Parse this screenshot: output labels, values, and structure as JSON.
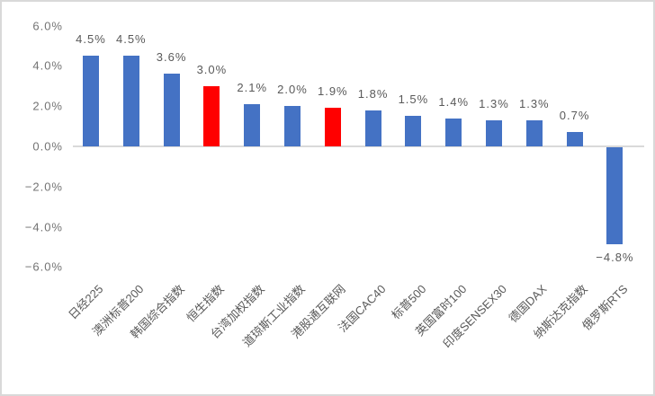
{
  "chart_data": {
    "type": "bar",
    "title": "",
    "xlabel": "",
    "ylabel": "",
    "categories": [
      "日经225",
      "澳洲标普200",
      "韩国综合指数",
      "恒生指数",
      "台湾加权指数",
      "道琼斯工业指数",
      "港股通互联网",
      "法国CAC40",
      "标普500",
      "英国富时100",
      "印度SENSEX30",
      "德国DAX",
      "纳斯达克指数",
      "俄罗斯RTS"
    ],
    "values": [
      4.5,
      4.5,
      3.6,
      3.0,
      2.1,
      2.0,
      1.9,
      1.8,
      1.5,
      1.4,
      1.3,
      1.3,
      0.7,
      -4.8
    ],
    "data_labels": [
      "4.5%",
      "4.5%",
      "3.6%",
      "3.0%",
      "2.1%",
      "2.0%",
      "1.9%",
      "1.8%",
      "1.5%",
      "1.4%",
      "1.3%",
      "1.3%",
      "0.7%",
      "−4.8%"
    ],
    "bar_colors": [
      "#4472C4",
      "#4472C4",
      "#4472C4",
      "#FF0000",
      "#4472C4",
      "#4472C4",
      "#FF0000",
      "#4472C4",
      "#4472C4",
      "#4472C4",
      "#4472C4",
      "#4472C4",
      "#4472C4",
      "#4472C4"
    ],
    "highlighted_categories": [
      "恒生指数",
      "港股通互联网"
    ],
    "y_ticks": [
      "6.0%",
      "4.0%",
      "2.0%",
      "0.0%",
      "−2.0%",
      "−4.0%",
      "−6.0%"
    ],
    "y_tick_values": [
      6,
      4,
      2,
      0,
      -2,
      -4,
      -6
    ],
    "ylim": [
      -6,
      6
    ],
    "grid": false,
    "legend": "none",
    "colors": {
      "default_bar": "#4472C4",
      "highlight_bar": "#FF0000",
      "axis_text": "#737373",
      "data_label_text": "#595959",
      "axis_line": "#D9D9D9",
      "chart_border": "#D9D9D9",
      "background": "#ffffff"
    }
  }
}
